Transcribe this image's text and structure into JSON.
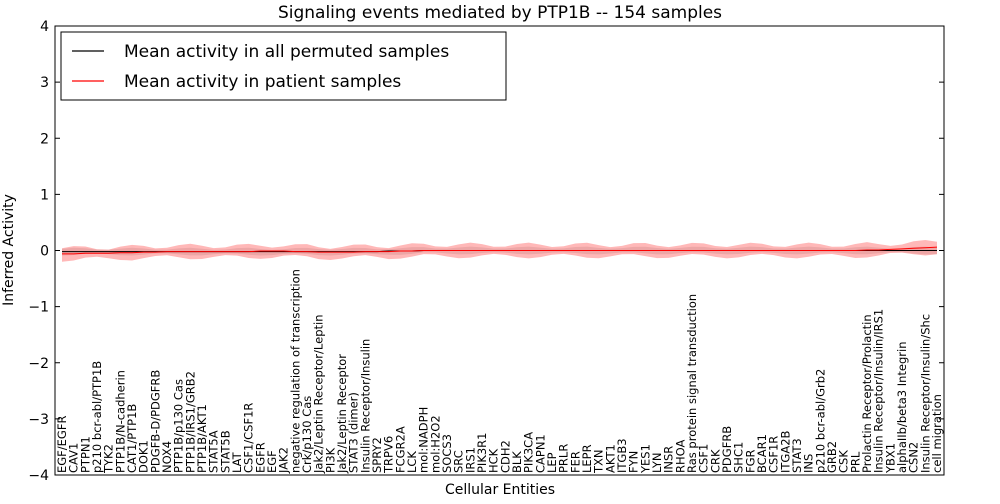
{
  "chart_data": {
    "type": "line",
    "title": "Signaling events mediated by PTP1B -- 154 samples",
    "xlabel": "Cellular Entities",
    "ylabel": "Inferred Activity",
    "ylim": [
      -4,
      4
    ],
    "yticks": [
      -4,
      -3,
      -2,
      -1,
      0,
      1,
      2,
      3,
      4
    ],
    "legend_position": "top-left",
    "categories": [
      "EGF/EGFR",
      "CAV1",
      "PTPN1",
      "p210 bcr-abl/PTP1B",
      "TYK2",
      "PTP1B/N-cadherin",
      "CAT1/PTP1B",
      "DOK1",
      "PDGFB-D/PDGFRB",
      "NOX4",
      "PTP1B/p130 Cas",
      "PTP1B/IRS1/GRB2",
      "PTP1B/AKT1",
      "STAT5A",
      "STAT5B",
      "LAT",
      "CSF1/CSF1R",
      "EGFR",
      "EGF",
      "JAK2",
      "negative regulation of transcription",
      "Crk/p130 Cas",
      "Jak2/Leptin Receptor/Leptin",
      "PI3K",
      "Jak2/Leptin Receptor",
      "STAT3 (dimer)",
      "Insulin Receptor/Insulin",
      "SPRY2",
      "TRPV6",
      "FCGR2A",
      "LCK",
      "mol:NADPH",
      "mol:H2O2",
      "SOCS3",
      "SRC",
      "IRS1",
      "PIK3R1",
      "HCK",
      "CDH2",
      "BLK",
      "PIK3CA",
      "CAPN1",
      "LEP",
      "PRLR",
      "FER",
      "LEPR",
      "TXN",
      "AKT1",
      "ITGB3",
      "FYN",
      "YES1",
      "LYN",
      "INSR",
      "RHOA",
      "Ras protein signal transduction",
      "CSF1",
      "CRK",
      "PDGFRB",
      "SHC1",
      "FGR",
      "BCAR1",
      "CSF1R",
      "ITGA2B",
      "STAT3",
      "INS",
      "p210 bcr-abl/Grb2",
      "GRB2",
      "CSK",
      "PRL",
      "Prolactin Receptor/Prolactin",
      "Insulin Receptor/Insulin/IRS1",
      "YBX1",
      "alphaIIb/beta3 Integrin",
      "CSN2",
      "Insulin Receptor/Insulin/Shc",
      "cell migration"
    ],
    "series": [
      {
        "name": "Mean activity in all permuted samples",
        "color": "#000000",
        "values": [
          -0.02,
          -0.02,
          -0.02,
          -0.02,
          -0.02,
          -0.02,
          -0.02,
          -0.02,
          -0.02,
          -0.02,
          -0.02,
          -0.02,
          -0.02,
          -0.02,
          -0.02,
          -0.02,
          -0.02,
          -0.02,
          -0.02,
          -0.02,
          -0.02,
          -0.02,
          -0.02,
          -0.02,
          -0.02,
          -0.02,
          -0.02,
          -0.02,
          -0.01,
          -0.01,
          -0.01,
          0.0,
          0.0,
          0.0,
          0.0,
          0.0,
          0.0,
          0.0,
          0.0,
          0.0,
          0.0,
          0.0,
          0.0,
          0.0,
          0.0,
          0.0,
          0.0,
          0.0,
          0.0,
          0.0,
          0.0,
          0.0,
          0.0,
          0.0,
          0.0,
          0.0,
          0.0,
          0.0,
          0.0,
          0.0,
          0.0,
          0.0,
          0.0,
          0.0,
          0.0,
          0.0,
          0.0,
          0.0,
          0.0,
          0.0,
          0.0,
          0.0,
          0.0,
          0.0,
          0.0,
          0.0
        ],
        "band": 0.05
      },
      {
        "name": "Mean activity in patient samples",
        "color": "#ff0000",
        "values": [
          -0.06,
          -0.06,
          -0.05,
          -0.05,
          -0.05,
          -0.04,
          -0.04,
          -0.03,
          -0.03,
          -0.02,
          -0.02,
          -0.02,
          -0.02,
          -0.02,
          -0.02,
          -0.02,
          -0.02,
          -0.01,
          -0.01,
          -0.01,
          -0.02,
          -0.02,
          -0.03,
          -0.03,
          -0.03,
          -0.03,
          -0.02,
          -0.02,
          -0.02,
          -0.01,
          -0.01,
          0.0,
          0.0,
          0.0,
          0.0,
          0.0,
          0.0,
          0.0,
          0.0,
          0.0,
          0.0,
          0.0,
          0.0,
          0.0,
          0.0,
          0.0,
          0.0,
          0.0,
          0.0,
          0.0,
          0.0,
          0.0,
          0.0,
          0.0,
          0.0,
          0.0,
          0.0,
          0.0,
          0.0,
          0.0,
          0.0,
          0.0,
          0.0,
          0.0,
          0.0,
          0.0,
          0.0,
          0.0,
          0.0,
          0.01,
          0.01,
          0.02,
          0.03,
          0.04,
          0.05,
          0.06
        ],
        "band": 0.1
      }
    ]
  }
}
